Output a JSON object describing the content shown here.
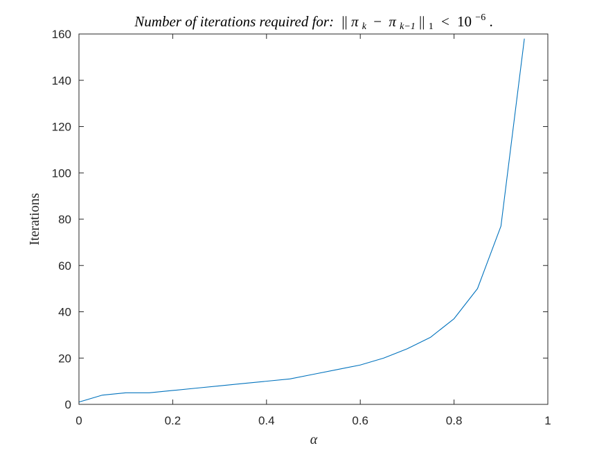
{
  "chart_data": {
    "type": "line",
    "title": "Number of iterations required for: ||π_k − π_{k−1}||_1 < 10^{−6}.",
    "title_parts": {
      "italic_text": "Number of iterations required for:",
      "norm_open": "||",
      "pi": "π",
      "k": "k",
      "minus": "−",
      "k_minus_1": "k−1",
      "norm_close": "||",
      "norm_sub": "1",
      "less_than": "<",
      "base": "10",
      "exponent": "−6",
      "period": "."
    },
    "xlabel": "α",
    "ylabel": "Iterations",
    "xlim": [
      0,
      1
    ],
    "ylim": [
      0,
      160
    ],
    "xticks": [
      0,
      0.2,
      0.4,
      0.6,
      0.8,
      1
    ],
    "xtick_labels": [
      "0",
      "0.2",
      "0.4",
      "0.6",
      "0.8",
      "1"
    ],
    "yticks": [
      0,
      20,
      40,
      60,
      80,
      100,
      120,
      140,
      160
    ],
    "ytick_labels": [
      "0",
      "20",
      "40",
      "60",
      "80",
      "100",
      "120",
      "140",
      "160"
    ],
    "grid": false,
    "series": [
      {
        "color": "#0072BD",
        "x": [
          0,
          0.05,
          0.1,
          0.15,
          0.2,
          0.25,
          0.3,
          0.35,
          0.4,
          0.45,
          0.5,
          0.55,
          0.6,
          0.65,
          0.7,
          0.75,
          0.8,
          0.85,
          0.9,
          0.95
        ],
        "y": [
          1,
          4,
          5,
          5,
          6,
          7,
          8,
          9,
          10,
          11,
          13,
          15,
          17,
          20,
          24,
          29,
          37,
          50,
          77,
          158
        ]
      }
    ]
  }
}
